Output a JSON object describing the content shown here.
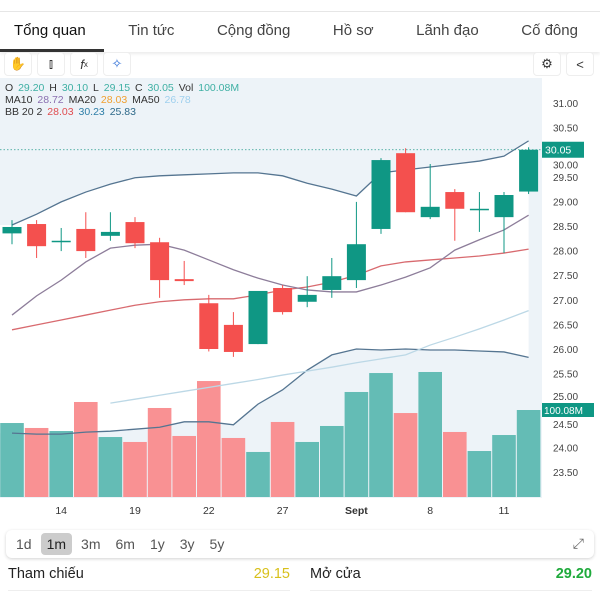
{
  "tabs": [
    "Tổng quan",
    "Tin tức",
    "Cộng đồng",
    "Hồ sơ",
    "Lãnh đạo",
    "Cố đông"
  ],
  "legend": {
    "o_label": "O",
    "o": "29.20",
    "h_label": "H",
    "h": "30.10",
    "l_label": "L",
    "l": "29.15",
    "c_label": "C",
    "c": "30.05",
    "vol_label": "Vol",
    "vol": "100.08M",
    "ma10_label": "MA10",
    "ma10": "28.72",
    "ma20_label": "MA20",
    "ma20": "28.03",
    "ma50_label": "MA50",
    "ma50": "26.78",
    "bb_label": "BB 20 2",
    "bb_mid": "28.03",
    "bb_up": "30.23",
    "bb_low": "25.83"
  },
  "periods": [
    "1d",
    "1m",
    "3m",
    "6m",
    "1y",
    "3y",
    "5y"
  ],
  "active_period": "1m",
  "info": {
    "ref_label": "Tham chiếu",
    "ref": "29.15",
    "open_label": "Mở cửa",
    "open": "29.20"
  },
  "colors": {
    "up": "#0f9784",
    "down": "#f4504e",
    "vol_up": "#64bcb5",
    "vol_down": "#f99193",
    "band": "#557591",
    "ma10": "#8d7d9a",
    "mid": "#d86a6f",
    "ma50": "#bcd8e6"
  },
  "chart_data": {
    "type": "candlestick",
    "yticks": [
      "31.00",
      "30.50",
      "30.00",
      "29.50",
      "29.00",
      "28.50",
      "28.00",
      "27.50",
      "27.00",
      "26.50",
      "26.00",
      "25.50",
      "25.00",
      "24.50",
      "24.00",
      "23.50"
    ],
    "ylim": [
      23.5,
      31
    ],
    "xticks": [
      {
        "i": 2,
        "label": "14"
      },
      {
        "i": 5,
        "label": "19"
      },
      {
        "i": 8,
        "label": "22"
      },
      {
        "i": 11,
        "label": "27"
      },
      {
        "i": 14,
        "label": "Sept"
      },
      {
        "i": 17,
        "label": "8"
      },
      {
        "i": 20,
        "label": "11"
      }
    ],
    "last_price": "30.05",
    "last_volume": "100.08M",
    "ohlc": [
      [
        28.35,
        28.62,
        28.13,
        28.48
      ],
      [
        28.54,
        28.62,
        27.85,
        28.09
      ],
      [
        28.2,
        28.46,
        27.99,
        28.2
      ],
      [
        28.44,
        28.78,
        27.85,
        27.99
      ],
      [
        28.3,
        28.78,
        28.2,
        28.38
      ],
      [
        28.58,
        28.68,
        28.05,
        28.15
      ],
      [
        28.17,
        28.26,
        27.04,
        27.4
      ],
      [
        27.42,
        27.79,
        27.3,
        27.38
      ],
      [
        26.93,
        27.1,
        25.95,
        26.0
      ],
      [
        26.49,
        26.75,
        25.84,
        25.94
      ],
      [
        26.1,
        27.18,
        26.1,
        27.18
      ],
      [
        27.24,
        27.3,
        26.7,
        26.75
      ],
      [
        26.96,
        27.48,
        26.85,
        27.1
      ],
      [
        27.2,
        27.85,
        27.04,
        27.48
      ],
      [
        27.4,
        28.99,
        27.24,
        28.13
      ],
      [
        28.44,
        29.88,
        28.34,
        29.84
      ],
      [
        29.98,
        30.08,
        28.78,
        28.78
      ],
      [
        28.68,
        29.76,
        28.64,
        28.89
      ],
      [
        29.19,
        29.25,
        28.2,
        28.85
      ],
      [
        28.85,
        29.19,
        28.38,
        28.85
      ],
      [
        28.68,
        29.19,
        27.95,
        29.13
      ],
      [
        29.2,
        30.1,
        29.15,
        30.05
      ]
    ],
    "volume_m": [
      85.1,
      79.4,
      75.9,
      109.3,
      69,
      63.3,
      102.4,
      70.2,
      133.4,
      67.9,
      51.8,
      86.3,
      63.3,
      81.7,
      120.8,
      142.6,
      96.6,
      143.8,
      74.8,
      52.9,
      71.3,
      100.08
    ],
    "volume_up": [
      1,
      0,
      1,
      0,
      1,
      0,
      0,
      0,
      0,
      0,
      1,
      0,
      1,
      1,
      1,
      1,
      0,
      1,
      0,
      1,
      1,
      1
    ],
    "bb_upper": [
      28.52,
      28.74,
      28.99,
      29.19,
      29.35,
      29.48,
      29.52,
      29.54,
      29.56,
      29.58,
      29.58,
      29.52,
      29.37,
      29.25,
      29.11,
      29.58,
      29.64,
      29.7,
      29.76,
      29.82,
      29.92,
      30.23
    ],
    "bb_lower": [
      24.29,
      24.27,
      24.27,
      24.31,
      24.33,
      24.37,
      24.41,
      24.52,
      24.52,
      24.46,
      24.88,
      25.17,
      25.57,
      25.88,
      26.0,
      25.98,
      26.0,
      25.98,
      25.98,
      25.96,
      25.94,
      25.83
    ],
    "bb_mid": [
      26.39,
      26.49,
      26.59,
      26.69,
      26.79,
      26.89,
      26.96,
      27.0,
      27.02,
      27.02,
      27.1,
      27.2,
      27.26,
      27.36,
      27.5,
      27.69,
      27.77,
      27.81,
      27.85,
      27.89,
      27.95,
      28.03
    ],
    "ma10": [
      26.69,
      27.08,
      27.4,
      27.77,
      28.05,
      28.11,
      28.13,
      28.01,
      27.81,
      27.61,
      27.44,
      27.3,
      27.2,
      27.16,
      27.16,
      27.3,
      27.46,
      27.65,
      28.01,
      28.22,
      28.42,
      28.72
    ],
    "ma50": [
      null,
      null,
      null,
      null,
      24.9,
      24.98,
      25.06,
      25.14,
      25.22,
      25.3,
      25.38,
      25.47,
      25.55,
      25.63,
      25.72,
      25.8,
      25.88,
      26.08,
      26.24,
      26.41,
      26.59,
      26.78
    ]
  }
}
